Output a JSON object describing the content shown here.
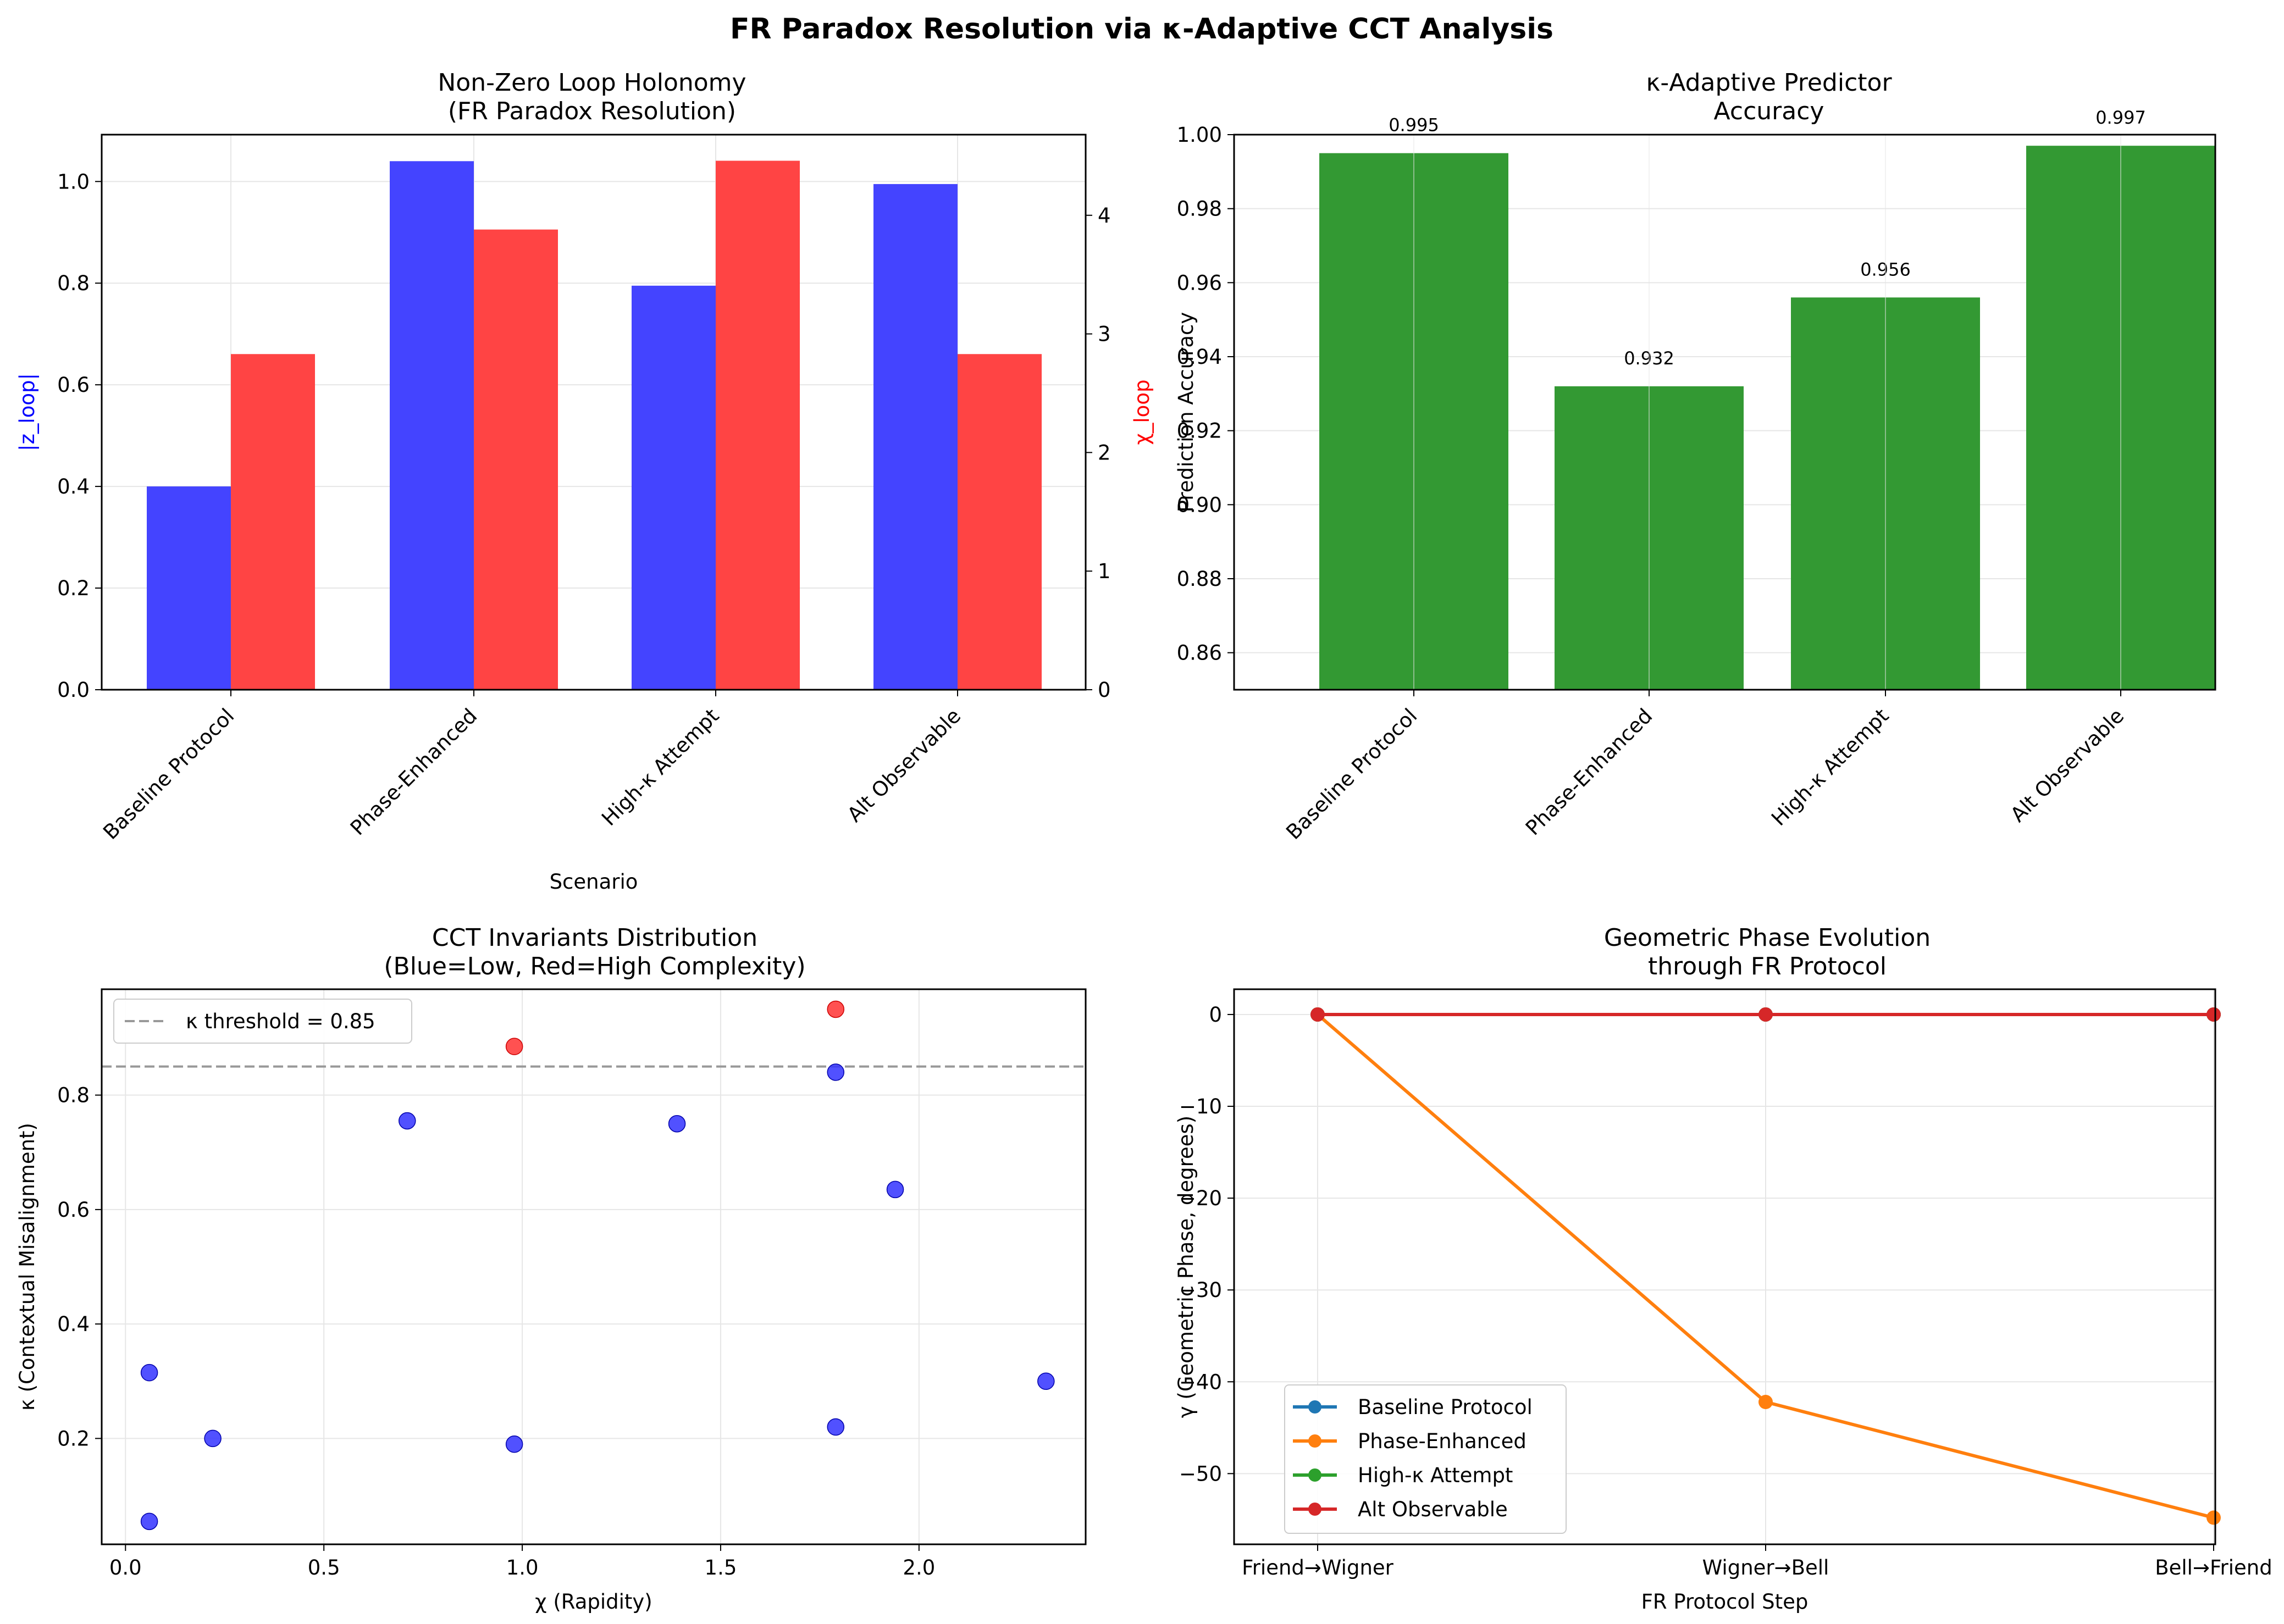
{
  "figure": {
    "title": "FR Paradox Resolution via κ-Adaptive CCT Analysis"
  },
  "chart_data": [
    {
      "id": "holonomy",
      "type": "bar",
      "title_lines": [
        "Non-Zero Loop Holonomy",
        "(FR Paradox Resolution)"
      ],
      "xlabel": "Scenario",
      "ylabel": "|z_loop|",
      "ylabel_color": "#0000ff",
      "y2label": "χ_loop",
      "y2label_color": "#ff0000",
      "categories": [
        "Baseline Protocol",
        "Phase-Enhanced",
        "High-κ Attempt",
        "Alt Observable"
      ],
      "series": [
        {
          "key": "z",
          "axis": "left",
          "color": "#4444ff",
          "values": [
            0.4,
            1.04,
            0.795,
            0.995
          ]
        },
        {
          "key": "chi",
          "axis": "right",
          "color": "#ff4444",
          "values": [
            2.83,
            3.88,
            4.46,
            2.83
          ]
        }
      ],
      "ylim": [
        0,
        1.0922
      ],
      "yticks": [
        "0.0",
        "0.2",
        "0.4",
        "0.6",
        "0.8",
        "1.0"
      ],
      "y2lim": [
        0,
        4.68
      ],
      "y2ticks": [
        "0",
        "1",
        "2",
        "3",
        "4"
      ],
      "grid": true
    },
    {
      "id": "accuracy",
      "type": "bar",
      "title_lines": [
        "κ-Adaptive Predictor",
        "Accuracy"
      ],
      "xlabel": "",
      "ylabel": "Prediction Accuracy",
      "categories": [
        "Baseline Protocol",
        "Phase-Enhanced",
        "High-κ Attempt",
        "Alt Observable"
      ],
      "values": [
        0.995,
        0.932,
        0.956,
        0.997
      ],
      "value_labels": [
        "0.995",
        "0.932",
        "0.956",
        "0.997"
      ],
      "color": "#339933",
      "ylim": [
        0.85,
        1.0
      ],
      "yticks": [
        "0.86",
        "0.88",
        "0.90",
        "0.92",
        "0.94",
        "0.96",
        "0.98",
        "1.00"
      ],
      "grid": true
    },
    {
      "id": "invariants",
      "type": "scatter",
      "title_lines": [
        "CCT Invariants Distribution",
        "(Blue=Low, Red=High Complexity)"
      ],
      "xlabel": "χ (Rapidity)",
      "ylabel": "κ (Contextual Misalignment)",
      "xlim": [
        -0.06,
        2.42
      ],
      "ylim": [
        0.015,
        0.985
      ],
      "xticks": [
        "0.0",
        "0.5",
        "1.0",
        "1.5",
        "2.0"
      ],
      "yticks": [
        "0.2",
        "0.4",
        "0.6",
        "0.8"
      ],
      "threshold": {
        "value": 0.85,
        "label": "κ threshold = 0.85",
        "color": "#999999"
      },
      "low_color": "#3333ff",
      "high_color": "#ff3333",
      "points": [
        {
          "x": 0.06,
          "y": 0.315,
          "high": false
        },
        {
          "x": 0.06,
          "y": 0.055,
          "high": false
        },
        {
          "x": 0.22,
          "y": 0.2,
          "high": false
        },
        {
          "x": 0.71,
          "y": 0.755,
          "high": false
        },
        {
          "x": 0.98,
          "y": 0.19,
          "high": false
        },
        {
          "x": 0.98,
          "y": 0.885,
          "high": true
        },
        {
          "x": 1.39,
          "y": 0.75,
          "high": false
        },
        {
          "x": 1.79,
          "y": 0.95,
          "high": true
        },
        {
          "x": 1.79,
          "y": 0.84,
          "high": false
        },
        {
          "x": 1.79,
          "y": 0.22,
          "high": false
        },
        {
          "x": 1.94,
          "y": 0.635,
          "high": false
        },
        {
          "x": 2.32,
          "y": 0.3,
          "high": false
        }
      ],
      "legend_position": "upper-left",
      "grid": true
    },
    {
      "id": "phase",
      "type": "line",
      "title_lines": [
        "Geometric Phase Evolution",
        "through FR Protocol"
      ],
      "xlabel": "FR Protocol Step",
      "ylabel": "γ (Geometric Phase, degrees)",
      "categories": [
        "Friend→Wigner",
        "Wigner→Bell",
        "Bell→Friend"
      ],
      "ylim": [
        -57.7,
        2.75
      ],
      "yticks": [
        "0",
        "−10",
        "−20",
        "−30",
        "−40",
        "−50"
      ],
      "ytick_values": [
        0,
        -10,
        -20,
        -30,
        -40,
        -50
      ],
      "series": [
        {
          "name": "Baseline Protocol",
          "color": "#1f77b4",
          "values": [
            0,
            0,
            0
          ]
        },
        {
          "name": "Phase-Enhanced",
          "color": "#ff7f0e",
          "values": [
            0,
            -42.2,
            -54.8
          ]
        },
        {
          "name": "High-κ Attempt",
          "color": "#2ca02c",
          "values": [
            0,
            0,
            0
          ]
        },
        {
          "name": "Alt Observable",
          "color": "#d62728",
          "values": [
            0,
            0,
            0
          ]
        }
      ],
      "legend_position": "lower-left",
      "grid": true
    }
  ]
}
